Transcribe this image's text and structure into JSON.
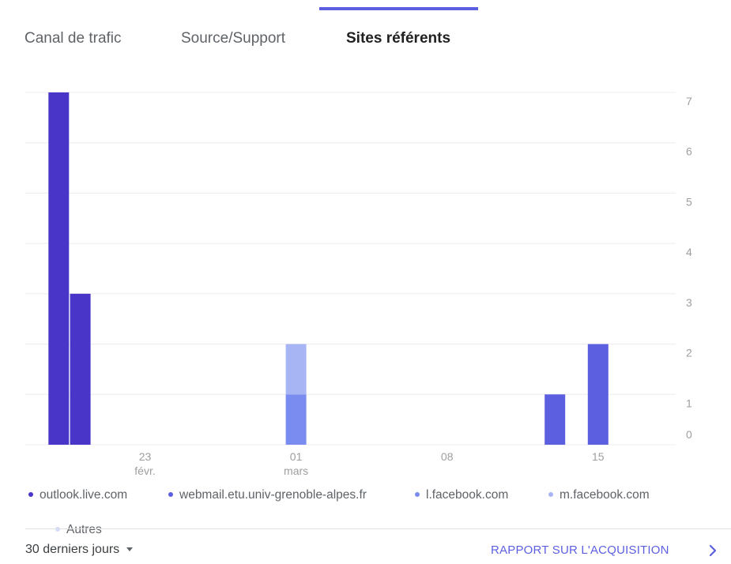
{
  "tabs": [
    {
      "label": "Canal de trafic",
      "active": false
    },
    {
      "label": "Source/Support",
      "active": false
    },
    {
      "label": "Sites référents",
      "active": true
    }
  ],
  "chart_data": {
    "type": "bar",
    "stacked": true,
    "title": "",
    "xlabel": "",
    "ylabel": "",
    "ylim": [
      0,
      7
    ],
    "y_ticks": [
      "7",
      "6",
      "5",
      "4",
      "3",
      "2",
      "1",
      "0"
    ],
    "x_ticks": [
      {
        "date": "2020-02-23",
        "label": "23",
        "sublabel": "févr."
      },
      {
        "date": "2020-03-01",
        "label": "01",
        "sublabel": "mars"
      },
      {
        "date": "2020-03-08",
        "label": "08",
        "sublabel": ""
      },
      {
        "date": "2020-03-15",
        "label": "15",
        "sublabel": ""
      }
    ],
    "x_range": [
      "2020-02-18",
      "2020-03-18"
    ],
    "bars": [
      {
        "date": "2020-02-19",
        "segments": [
          {
            "series": "outlook.live.com",
            "value": 7
          }
        ]
      },
      {
        "date": "2020-02-20",
        "segments": [
          {
            "series": "outlook.live.com",
            "value": 3
          }
        ]
      },
      {
        "date": "2020-03-01",
        "segments": [
          {
            "series": "l.facebook.com",
            "value": 1
          },
          {
            "series": "m.facebook.com",
            "value": 1
          }
        ]
      },
      {
        "date": "2020-03-13",
        "segments": [
          {
            "series": "webmail.etu.univ-grenoble-alpes.fr",
            "value": 1
          }
        ]
      },
      {
        "date": "2020-03-15",
        "segments": [
          {
            "series": "webmail.etu.univ-grenoble-alpes.fr",
            "value": 2
          }
        ]
      }
    ],
    "legend_position": "bottom",
    "gridlines": true
  },
  "legend": [
    {
      "name": "outlook.live.com",
      "color": "#4a35c9"
    },
    {
      "name": "webmail.etu.univ-grenoble-alpes.fr",
      "color": "#5c5fe0"
    },
    {
      "name": "l.facebook.com",
      "color": "#7b8cf0"
    },
    {
      "name": "m.facebook.com",
      "color": "#a7b5f5"
    },
    {
      "name": "Autres",
      "color": "#d3dbfb"
    }
  ],
  "footer": {
    "date_range": "30 derniers jours",
    "report_link": "RAPPORT SUR L'ACQUISITION",
    "icons": {
      "caret": "caret-down-icon",
      "chevron": "chevron-right-icon"
    }
  }
}
